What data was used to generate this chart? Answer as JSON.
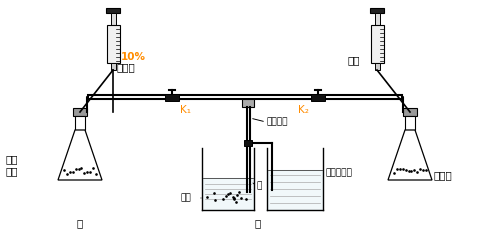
{
  "bg_color": "#ffffff",
  "label_10pct": "10%",
  "label_shuangyang": "双氧水",
  "label_yansuan": "盐酸",
  "label_K1": "K₁",
  "label_K2": "K₂",
  "label_jizhi": "具支试管",
  "label_bailin": "白磷",
  "label_shui": "水",
  "label_qingshihuishui": "澄清石灰水",
  "label_erhuameng": "二氧\n化锰",
  "label_jia": "甲",
  "label_yi": "乙",
  "label_tansuangai": "碳酸钙",
  "text_color_orange": "#FF8C00",
  "text_color_black": "#000000",
  "lc": "#000000"
}
